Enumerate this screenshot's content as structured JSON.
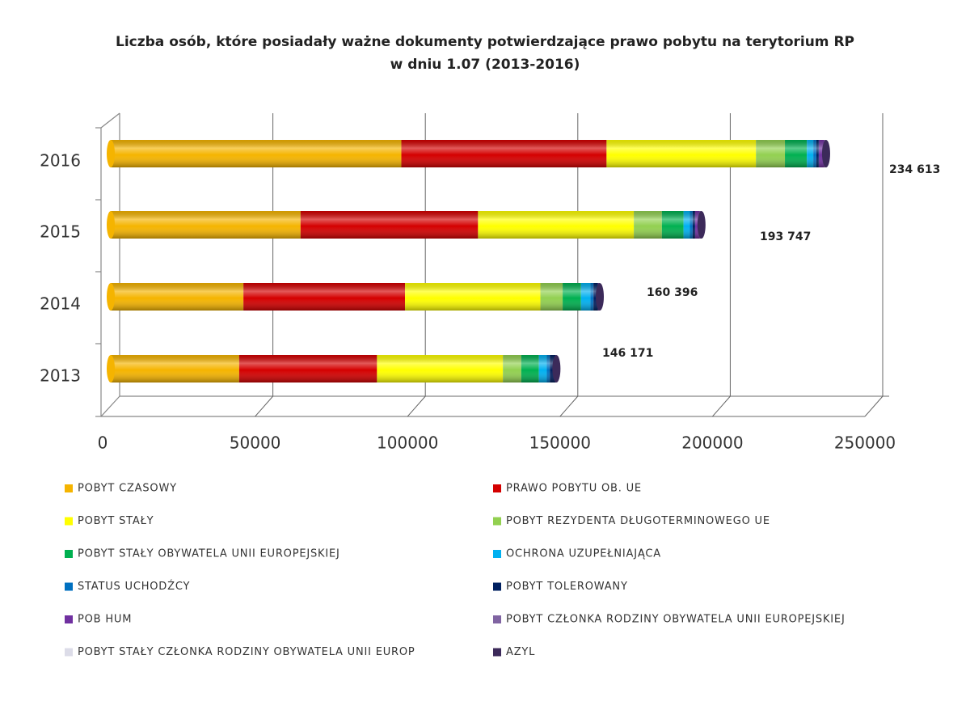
{
  "chart_data": {
    "type": "stacked-bar-horizontal",
    "title": "Liczba osób, które posiadały ważne dokumenty potwierdzające prawo pobytu na terytorium RP",
    "subtitle": "w dniu 1.07 (2013-2016)",
    "categories": [
      "2013",
      "2014",
      "2015",
      "2016"
    ],
    "xlim": [
      0,
      250000
    ],
    "xticks": [
      0,
      50000,
      100000,
      150000,
      200000,
      250000
    ],
    "grid": true,
    "legend": "bottom",
    "series": [
      {
        "name": "POBYT CZASOWY",
        "color": "#f5b400",
        "values": [
          42121,
          43516,
          62257,
          95313
        ]
      },
      {
        "name": "PRAWO POBYTU OB. UE",
        "color": "#d40000",
        "values": [
          45200,
          53000,
          58200,
          67300
        ]
      },
      {
        "name": "POBYT STAŁY",
        "color": "#ffff00",
        "values": [
          41300,
          44400,
          51100,
          49000
        ]
      },
      {
        "name": "POBYT REZYDENTA DŁUGOTERMINOWEGO UE",
        "color": "#92d050",
        "values": [
          6000,
          7300,
          9200,
          9500
        ]
      },
      {
        "name": "POBYT STAŁY OBYWATELA UNII EUROPEJSKIEJ",
        "color": "#00b050",
        "values": [
          5800,
          6000,
          7100,
          7200
        ]
      },
      {
        "name": "OCHRONA UZUPEŁNIAJĄCA",
        "color": "#00b0f0",
        "values": [
          2600,
          3100,
          2100,
          2100
        ]
      },
      {
        "name": "STATUS UCHODŹCY",
        "color": "#0070c0",
        "values": [
          1000,
          1000,
          900,
          1000
        ]
      },
      {
        "name": "POBYT TOLEROWANY",
        "color": "#002060",
        "values": [
          1800,
          1500,
          800,
          800
        ]
      },
      {
        "name": "POB HUM",
        "color": "#7030a0",
        "values": [
          200,
          300,
          1500,
          1800
        ]
      },
      {
        "name": "POBYT CZŁONKA RODZINY OBYWATELA UNII EUROPEJSKIEJ",
        "color": "#8064a2",
        "values": [
          100,
          200,
          500,
          500
        ]
      },
      {
        "name": "POBYT STAŁY CZŁONKA RODZINY OBYWATELA UNII EUROP",
        "color": "#dcdce8",
        "values": [
          30,
          50,
          60,
          70
        ]
      },
      {
        "name": "AZYL",
        "color": "#3c2a5a",
        "values": [
          20,
          30,
          30,
          30
        ]
      }
    ],
    "totals": {
      "values": [
        146171,
        160396,
        193747,
        234613
      ],
      "value_labels": [
        "146 171",
        "160 396",
        "193 747",
        "234 613"
      ]
    }
  }
}
